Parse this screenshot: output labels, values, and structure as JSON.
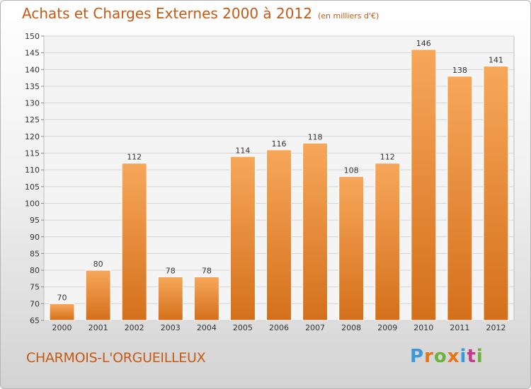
{
  "title": "Achats et Charges Externes 2000 à 2012",
  "subtitle": "(en milliers d'€)",
  "place_name": "CHARMOIS-L'ORGUEILLEUX",
  "logo": {
    "letters": [
      "P",
      "r",
      "o",
      "x",
      "i",
      "t",
      "i"
    ],
    "colors": [
      "#3a9ad9",
      "#e8731c",
      "#6bb33b",
      "#e8731c",
      "#3a9ad9",
      "#c43a8a",
      "#6bb33b"
    ]
  },
  "chart_data": {
    "type": "bar",
    "categories": [
      "2000",
      "2001",
      "2002",
      "2003",
      "2004",
      "2005",
      "2006",
      "2007",
      "2008",
      "2009",
      "2010",
      "2011",
      "2012"
    ],
    "values": [
      70,
      80,
      112,
      78,
      78,
      114,
      116,
      118,
      108,
      112,
      146,
      138,
      141
    ],
    "data_labels": [
      "70",
      "80",
      "112",
      "78",
      "78",
      "114",
      "116",
      "118",
      "108",
      "112",
      "146",
      "138",
      "141"
    ],
    "ylim": [
      65,
      150
    ],
    "yticks": [
      "65",
      "70",
      "75",
      "80",
      "85",
      "90",
      "95",
      "100",
      "105",
      "110",
      "115",
      "120",
      "125",
      "130",
      "135",
      "140",
      "145",
      "150"
    ],
    "grid": true,
    "colors": {
      "bar": "#f0892e",
      "bar_light": "#f7a75a",
      "bar_dark": "#d4701c"
    }
  }
}
